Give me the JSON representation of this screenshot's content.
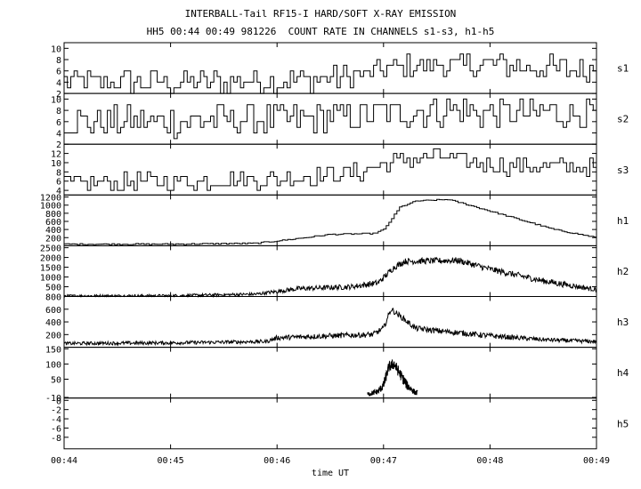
{
  "titles": {
    "line1": "INTERBALL-Tail RF15-I HARD/SOFT X-RAY EMISSION",
    "line2": "HH5 00:44 00:49 981226  COUNT RATE IN CHANNELS s1-s3, h1-h5"
  },
  "chart_data": {
    "type": "line",
    "title": "INTERBALL-Tail RF15-I HARD/SOFT X-RAY EMISSION",
    "subtitle": "HH5 00:44 00:49 981226  COUNT RATE IN CHANNELS s1-s3, h1-h5",
    "xlabel": "time UT",
    "xlim_minutes": [
      44,
      49
    ],
    "x_ticks": [
      "00:44",
      "00:45",
      "00:46",
      "00:47",
      "00:48",
      "00:49"
    ],
    "grid": false,
    "panels": [
      {
        "name": "s1",
        "style": "step",
        "ylim": [
          2,
          11
        ],
        "yticks": [
          "10",
          "8",
          "6",
          "4",
          "2"
        ],
        "ytick_values": [
          10,
          8,
          6,
          4,
          2
        ],
        "profile": [
          [
            44.0,
            4
          ],
          [
            45.0,
            4
          ],
          [
            46.0,
            4.2
          ],
          [
            46.8,
            5
          ],
          [
            47.0,
            6.5
          ],
          [
            47.6,
            7
          ],
          [
            48.0,
            7
          ],
          [
            49.0,
            6
          ]
        ],
        "noise_amp": 2.2,
        "points": 160
      },
      {
        "name": "s2",
        "style": "step",
        "ylim": [
          2,
          11
        ],
        "yticks": [
          "10",
          "8",
          "6",
          "4",
          "2"
        ],
        "ytick_values": [
          10,
          8,
          6,
          4,
          2
        ],
        "profile": [
          [
            44.0,
            6
          ],
          [
            45.0,
            6
          ],
          [
            46.0,
            6.3
          ],
          [
            46.8,
            7
          ],
          [
            47.0,
            7.5
          ],
          [
            47.6,
            8
          ],
          [
            48.0,
            7.5
          ],
          [
            49.0,
            7.5
          ]
        ],
        "noise_amp": 2.8,
        "points": 160
      },
      {
        "name": "s3",
        "style": "step",
        "ylim": [
          3,
          14
        ],
        "yticks": [
          "12",
          "10",
          "8",
          "6",
          "4"
        ],
        "ytick_values": [
          12,
          10,
          8,
          6,
          4
        ],
        "profile": [
          [
            44.0,
            5.5
          ],
          [
            45.0,
            6
          ],
          [
            46.0,
            6.5
          ],
          [
            46.8,
            8
          ],
          [
            47.0,
            10
          ],
          [
            47.5,
            11.5
          ],
          [
            47.8,
            10
          ],
          [
            48.0,
            9.5
          ],
          [
            49.0,
            9
          ]
        ],
        "noise_amp": 2.0,
        "points": 160
      },
      {
        "name": "h1",
        "style": "step",
        "ylim": [
          0,
          1250
        ],
        "yticks": [
          "1200",
          "1000",
          "800",
          "600",
          "400",
          "200"
        ],
        "ytick_values": [
          1200,
          1000,
          800,
          600,
          400,
          200
        ],
        "profile": [
          [
            44.0,
            40
          ],
          [
            45.0,
            40
          ],
          [
            45.8,
            60
          ],
          [
            46.2,
            180
          ],
          [
            46.5,
            280
          ],
          [
            46.9,
            300
          ],
          [
            47.0,
            400
          ],
          [
            47.15,
            950
          ],
          [
            47.3,
            1100
          ],
          [
            47.6,
            1140
          ],
          [
            47.8,
            1000
          ],
          [
            48.2,
            700
          ],
          [
            48.6,
            400
          ],
          [
            49.0,
            200
          ]
        ],
        "noise_amp": 15,
        "points": 200
      },
      {
        "name": "h2",
        "style": "noise",
        "ylim": [
          0,
          2600
        ],
        "yticks": [
          "2500",
          "2000",
          "1500",
          "1000",
          "500"
        ],
        "ytick_values": [
          2500,
          2000,
          1500,
          1000,
          500
        ],
        "profile": [
          [
            44.0,
            30
          ],
          [
            45.0,
            40
          ],
          [
            45.8,
            120
          ],
          [
            46.2,
            400
          ],
          [
            46.7,
            500
          ],
          [
            46.95,
            700
          ],
          [
            47.1,
            1500
          ],
          [
            47.2,
            1800
          ],
          [
            47.7,
            1850
          ],
          [
            48.0,
            1400
          ],
          [
            48.5,
            800
          ],
          [
            49.0,
            350
          ]
        ],
        "noise_amp": 160,
        "points": 900
      },
      {
        "name": "h3",
        "style": "noise",
        "ylim": [
          0,
          800
        ],
        "yticks": [
          "800",
          "600",
          "400",
          "200"
        ],
        "ytick_values": [
          800,
          600,
          400,
          200
        ],
        "profile": [
          [
            44.0,
            60
          ],
          [
            45.0,
            70
          ],
          [
            45.9,
            90
          ],
          [
            46.0,
            150
          ],
          [
            46.5,
            180
          ],
          [
            46.9,
            200
          ],
          [
            47.0,
            300
          ],
          [
            47.07,
            600
          ],
          [
            47.15,
            500
          ],
          [
            47.3,
            300
          ],
          [
            47.5,
            260
          ],
          [
            47.7,
            230
          ],
          [
            48.0,
            180
          ],
          [
            48.5,
            120
          ],
          [
            49.0,
            90
          ]
        ],
        "noise_amp": 45,
        "points": 900
      },
      {
        "name": "h4",
        "style": "noise",
        "ylim": [
          -12,
          155
        ],
        "yticks": [
          "150",
          "100",
          "50",
          "-10"
        ],
        "ytick_values": [
          150,
          100,
          50,
          -10
        ],
        "profile": [
          [
            46.85,
            0
          ],
          [
            46.95,
            10
          ],
          [
            47.0,
            30
          ],
          [
            47.05,
            90
          ],
          [
            47.1,
            100
          ],
          [
            47.15,
            70
          ],
          [
            47.22,
            30
          ],
          [
            47.3,
            5
          ]
        ],
        "noise_amp": 18,
        "points": 220,
        "x_range": [
          46.85,
          47.32
        ]
      },
      {
        "name": "h5",
        "style": "empty",
        "ylim": [
          -10.5,
          0.5
        ],
        "yticks": [
          "-8",
          "-6",
          "-4",
          "-2",
          "0"
        ],
        "ytick_values": [
          -8,
          -6,
          -4,
          -2,
          0
        ]
      }
    ]
  }
}
